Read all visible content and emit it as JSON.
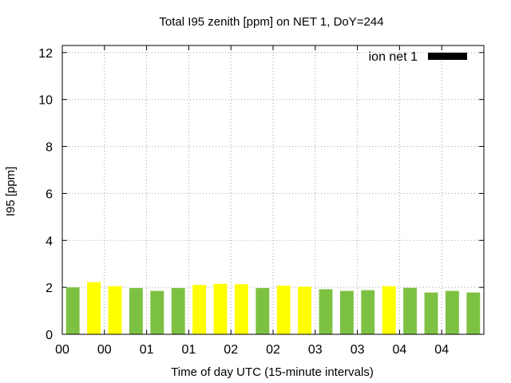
{
  "chart_data": {
    "type": "bar",
    "title": "Total I95 zenith [ppm] on NET 1, DoY=244",
    "xlabel": "Time of day UTC (15-minute intervals)",
    "ylabel": "I95 [ppm]",
    "ylim": [
      0,
      12.3
    ],
    "yticks": [
      0,
      2,
      4,
      6,
      8,
      10,
      12
    ],
    "xtick_labels": [
      "00",
      "00",
      "01",
      "01",
      "02",
      "02",
      "03",
      "03",
      "04",
      "04"
    ],
    "grid": true,
    "legend": {
      "position": "top-right",
      "entries": [
        "ion net 1"
      ]
    },
    "colors": {
      "green": "#7dc142",
      "yellow": "#ffff00",
      "legend_swatch": "#000000",
      "grid": "#a0a0a0"
    },
    "bars": [
      {
        "value": 2.0,
        "color": "green"
      },
      {
        "value": 2.22,
        "color": "yellow"
      },
      {
        "value": 2.05,
        "color": "yellow"
      },
      {
        "value": 1.97,
        "color": "green"
      },
      {
        "value": 1.85,
        "color": "green"
      },
      {
        "value": 1.97,
        "color": "green"
      },
      {
        "value": 2.1,
        "color": "yellow"
      },
      {
        "value": 2.15,
        "color": "yellow"
      },
      {
        "value": 2.13,
        "color": "yellow"
      },
      {
        "value": 1.97,
        "color": "green"
      },
      {
        "value": 2.07,
        "color": "yellow"
      },
      {
        "value": 2.03,
        "color": "yellow"
      },
      {
        "value": 1.92,
        "color": "green"
      },
      {
        "value": 1.85,
        "color": "green"
      },
      {
        "value": 1.88,
        "color": "green"
      },
      {
        "value": 2.05,
        "color": "yellow"
      },
      {
        "value": 1.98,
        "color": "green"
      },
      {
        "value": 1.78,
        "color": "green"
      },
      {
        "value": 1.85,
        "color": "green"
      },
      {
        "value": 1.78,
        "color": "green"
      }
    ]
  }
}
